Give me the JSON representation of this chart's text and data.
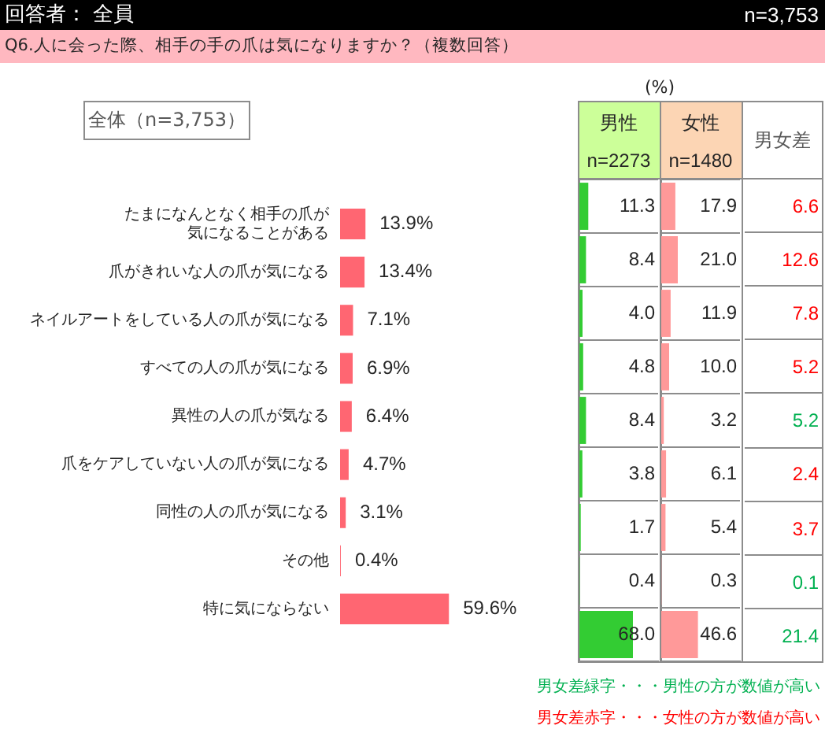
{
  "chart_data": [
    {
      "type": "bar",
      "orientation": "horizontal",
      "title": "Q6.人に会った際、相手の手の爪は気になりますか？（複数回答）",
      "annotations": [
        "回答者： 全員",
        "n=3,753",
        "全体（n=3,753）"
      ],
      "categories": [
        "たまになんとなく相手の爪が気になることがある",
        "爪がきれいな人の爪が気になる",
        "ネイルアートをしている人の爪が気になる",
        "すべての人の爪が気になる",
        "異性の人の爪が気なる",
        "爪をケアしていない人の爪が気になる",
        "同性の人の爪が気になる",
        "その他",
        "特に気にならない"
      ],
      "values": [
        13.9,
        13.4,
        7.1,
        6.9,
        6.4,
        4.7,
        3.1,
        0.4,
        59.6
      ],
      "color": "#ff6672",
      "value_labels": [
        "13.9%",
        "13.4%",
        "7.1%",
        "6.9%",
        "6.4%",
        "4.7%",
        "3.1%",
        "0.4%",
        "59.6%"
      ],
      "tick_labels": "y"
    },
    {
      "type": "bar",
      "orientation": "horizontal",
      "title": "男性",
      "subtitle": "n=2273",
      "annotations": [
        "(%)"
      ],
      "categories": [
        null,
        null,
        null,
        null,
        null,
        null,
        null,
        null,
        null
      ],
      "values": [
        11.3,
        8.4,
        4.0,
        4.8,
        8.4,
        3.8,
        1.7,
        0.4,
        68.0
      ],
      "color": "#33cc33",
      "value_labels": [
        "11.3",
        "8.4",
        "4.0",
        "4.8",
        "8.4",
        "3.8",
        "1.7",
        "0.4",
        "68.0"
      ],
      "xlim": [
        0,
        100
      ],
      "tick_labels": false,
      "grid": "y"
    },
    {
      "type": "bar",
      "orientation": "horizontal",
      "title": "女性",
      "subtitle": "n=1480",
      "categories": [
        null,
        null,
        null,
        null,
        null,
        null,
        null,
        null,
        null
      ],
      "values": [
        17.9,
        21.0,
        11.9,
        10.0,
        3.2,
        6.1,
        5.4,
        0.3,
        46.6
      ],
      "color": "#ff9999",
      "value_labels": [
        "17.9",
        "21.0",
        "11.9",
        "10.0",
        "3.2",
        "6.1",
        "5.4",
        "0.3",
        "46.6"
      ],
      "xlim": [
        0,
        100
      ],
      "tick_labels": false,
      "grid": "y"
    },
    {
      "type": "other",
      "title": "男女差",
      "values": [
        6.6,
        12.6,
        7.8,
        5.2,
        5.2,
        2.4,
        3.7,
        0.1,
        21.4
      ],
      "colors": [
        "#ff0000",
        "#ff0000",
        "#ff0000",
        "#ff0000",
        "#00b050",
        "#ff0000",
        "#ff0000",
        "#00b050",
        "#00b050"
      ],
      "data_labels": true,
      "annotations": [
        "男女差緑字・・・男性の方が数値が高い",
        "男女差赤字・・・女性の方が数値が高い"
      ]
    }
  ]
}
